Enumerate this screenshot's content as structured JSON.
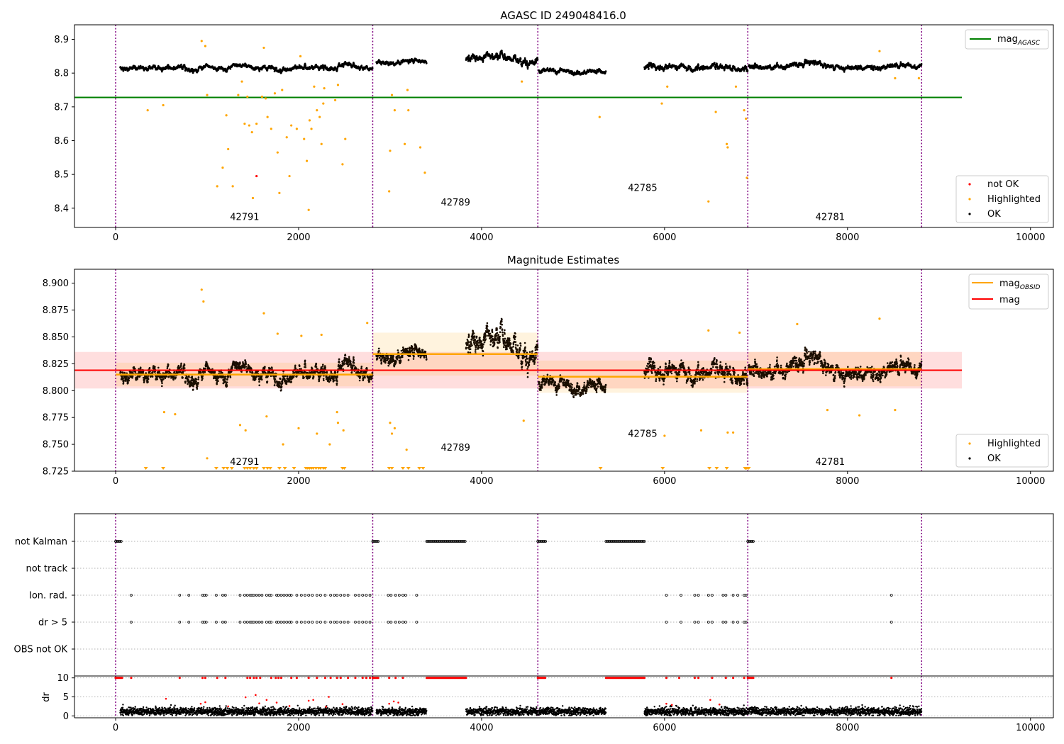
{
  "figure": {
    "background": "#ffffff"
  },
  "chart_data": [
    {
      "type": "scatter",
      "title": "AGASC ID 249048416.0",
      "xlim": [
        -450,
        10250
      ],
      "ylim": [
        8.343,
        8.943
      ],
      "x_ticks": [
        0,
        2000,
        4000,
        6000,
        8000,
        10000
      ],
      "x_tick_labels": [
        "0",
        "2000",
        "4000",
        "6000",
        "8000",
        "10000"
      ],
      "y_ticks": [
        8.4,
        8.5,
        8.6,
        8.7,
        8.8,
        8.9
      ],
      "y_tick_labels": [
        "8.4",
        "8.5",
        "8.6",
        "8.7",
        "8.8",
        "8.9"
      ],
      "obsid_boundaries": [
        0,
        2810,
        4615,
        6910,
        8810
      ],
      "obsid_labels": [
        {
          "text": "42791",
          "x": 1410,
          "y": 8.365
        },
        {
          "text": "42789",
          "x": 3715,
          "y": 8.408
        },
        {
          "text": "42785",
          "x": 5760,
          "y": 8.451
        },
        {
          "text": "42781",
          "x": 7810,
          "y": 8.365
        }
      ],
      "mag_agasc": 8.728,
      "mag_agasc_xrange": [
        -450,
        9250
      ],
      "segments": [
        {
          "x0": 50,
          "x1": 2810,
          "mean": 8.815,
          "std": 0.008
        },
        {
          "x0": 2850,
          "x1": 3400,
          "mean": 8.835,
          "std": 0.008
        },
        {
          "x0": 3830,
          "x1": 4615,
          "mean": 8.838,
          "std": 0.013
        },
        {
          "x0": 4625,
          "x1": 5360,
          "mean": 8.806,
          "std": 0.008
        },
        {
          "x0": 5780,
          "x1": 6910,
          "mean": 8.815,
          "std": 0.01
        },
        {
          "x0": 6920,
          "x1": 8810,
          "mean": 8.82,
          "std": 0.009
        }
      ],
      "highlighted_points": [
        [
          350,
          8.69
        ],
        [
          520,
          8.705
        ],
        [
          940,
          8.895
        ],
        [
          980,
          8.88
        ],
        [
          1000,
          8.735
        ],
        [
          1110,
          8.465
        ],
        [
          1170,
          8.52
        ],
        [
          1210,
          8.675
        ],
        [
          1230,
          8.575
        ],
        [
          1280,
          8.465
        ],
        [
          1340,
          8.735
        ],
        [
          1380,
          8.775
        ],
        [
          1410,
          8.65
        ],
        [
          1440,
          8.73
        ],
        [
          1460,
          8.645
        ],
        [
          1490,
          8.625
        ],
        [
          1500,
          8.43
        ],
        [
          1540,
          8.65
        ],
        [
          1600,
          8.73
        ],
        [
          1620,
          8.875
        ],
        [
          1640,
          8.725
        ],
        [
          1660,
          8.67
        ],
        [
          1700,
          8.635
        ],
        [
          1740,
          8.74
        ],
        [
          1770,
          8.565
        ],
        [
          1790,
          8.445
        ],
        [
          1820,
          8.75
        ],
        [
          1870,
          8.61
        ],
        [
          1900,
          8.495
        ],
        [
          1920,
          8.645
        ],
        [
          1980,
          8.635
        ],
        [
          2020,
          8.85
        ],
        [
          2060,
          8.605
        ],
        [
          2090,
          8.54
        ],
        [
          2110,
          8.395
        ],
        [
          2120,
          8.66
        ],
        [
          2140,
          8.635
        ],
        [
          2170,
          8.76
        ],
        [
          2200,
          8.69
        ],
        [
          2230,
          8.67
        ],
        [
          2250,
          8.59
        ],
        [
          2270,
          8.71
        ],
        [
          2280,
          8.755
        ],
        [
          2400,
          8.72
        ],
        [
          2430,
          8.765
        ],
        [
          2480,
          8.53
        ],
        [
          2510,
          8.605
        ],
        [
          2990,
          8.45
        ],
        [
          3000,
          8.57
        ],
        [
          3020,
          8.735
        ],
        [
          3050,
          8.69
        ],
        [
          3160,
          8.59
        ],
        [
          3190,
          8.75
        ],
        [
          3200,
          8.69
        ],
        [
          3330,
          8.58
        ],
        [
          3380,
          8.505
        ],
        [
          4440,
          8.775
        ],
        [
          5290,
          8.67
        ],
        [
          5970,
          8.71
        ],
        [
          6030,
          8.76
        ],
        [
          6480,
          8.42
        ],
        [
          6560,
          8.685
        ],
        [
          6680,
          8.59
        ],
        [
          6690,
          8.58
        ],
        [
          6780,
          8.76
        ],
        [
          6870,
          8.69
        ],
        [
          6890,
          8.665
        ],
        [
          6900,
          8.49
        ],
        [
          8350,
          8.865
        ],
        [
          8520,
          8.785
        ],
        [
          8780,
          8.785
        ]
      ],
      "not_ok_points": [
        [
          1540,
          8.495
        ]
      ]
    },
    {
      "type": "scatter",
      "title": "Magnitude Estimates",
      "xlim": [
        -450,
        10250
      ],
      "ylim": [
        8.725,
        8.913
      ],
      "x_ticks": [
        0,
        2000,
        4000,
        6000,
        8000,
        10000
      ],
      "x_tick_labels": [
        "0",
        "2000",
        "4000",
        "6000",
        "8000",
        "10000"
      ],
      "y_ticks": [
        8.725,
        8.75,
        8.775,
        8.8,
        8.825,
        8.85,
        8.875,
        8.9
      ],
      "y_tick_labels": [
        "8.725",
        "8.750",
        "8.775",
        "8.800",
        "8.825",
        "8.850",
        "8.875",
        "8.900"
      ],
      "obsid_labels": [
        {
          "text": "42791",
          "x": 1410,
          "y": 8.731
        },
        {
          "text": "42789",
          "x": 3715,
          "y": 8.744
        },
        {
          "text": "42785",
          "x": 5760,
          "y": 8.757
        },
        {
          "text": "42781",
          "x": 7810,
          "y": 8.731
        }
      ],
      "mag": 8.819,
      "mag_std": 0.017,
      "mag_xrange": [
        -450,
        9250
      ],
      "mag_obsid": [
        {
          "x0": 0,
          "x1": 2810,
          "mean": 8.815,
          "std": 0.011
        },
        {
          "x0": 2810,
          "x1": 4615,
          "mean": 8.834,
          "std": 0.02
        },
        {
          "x0": 4615,
          "x1": 6910,
          "mean": 8.813,
          "std": 0.015
        },
        {
          "x0": 6910,
          "x1": 8810,
          "mean": 8.82,
          "std": 0.016
        }
      ],
      "highlighted_points": [
        [
          530,
          8.78
        ],
        [
          650,
          8.778
        ],
        [
          940,
          8.894
        ],
        [
          960,
          8.883
        ],
        [
          1000,
          8.737
        ],
        [
          1360,
          8.768
        ],
        [
          1420,
          8.763
        ],
        [
          1620,
          8.872
        ],
        [
          1650,
          8.776
        ],
        [
          1770,
          8.853
        ],
        [
          1830,
          8.75
        ],
        [
          2000,
          8.765
        ],
        [
          2030,
          8.851
        ],
        [
          2200,
          8.76
        ],
        [
          2250,
          8.852
        ],
        [
          2340,
          8.75
        ],
        [
          2420,
          8.78
        ],
        [
          2430,
          8.77
        ],
        [
          2490,
          8.763
        ],
        [
          2750,
          8.863
        ],
        [
          3000,
          8.77
        ],
        [
          3020,
          8.76
        ],
        [
          3050,
          8.765
        ],
        [
          3180,
          8.745
        ],
        [
          4460,
          8.772
        ],
        [
          6000,
          8.758
        ],
        [
          6400,
          8.763
        ],
        [
          6480,
          8.856
        ],
        [
          6690,
          8.761
        ],
        [
          6750,
          8.761
        ],
        [
          6820,
          8.854
        ],
        [
          7450,
          8.862
        ],
        [
          7780,
          8.782
        ],
        [
          8130,
          8.777
        ],
        [
          8350,
          8.867
        ],
        [
          8520,
          8.782
        ]
      ],
      "clipped_points": [
        330,
        520,
        1100,
        1180,
        1220,
        1270,
        1410,
        1440,
        1470,
        1510,
        1540,
        1620,
        1660,
        1690,
        1790,
        1850,
        1950,
        2080,
        2100,
        2120,
        2140,
        2160,
        2190,
        2220,
        2240,
        2270,
        2290,
        2480,
        2500,
        2990,
        3020,
        3140,
        3200,
        3320,
        3360,
        5300,
        5980,
        6490,
        6570,
        6680,
        6880,
        6890,
        6900,
        6920
      ]
    },
    {
      "type": "scatter",
      "xlim": [
        -450,
        10250
      ],
      "y_tick_labels": [
        "not Kalman",
        "not track",
        "Ion. rad.",
        "dr > 5",
        "OBS not OK"
      ],
      "flag_ranges": {
        "not Kalman": [
          [
            0,
            70
          ],
          [
            2810,
            2870
          ],
          [
            3400,
            3830
          ],
          [
            4615,
            4700
          ],
          [
            5360,
            5780
          ],
          [
            6910,
            6970
          ]
        ]
      },
      "flag_points": {
        "Ion. rad.": [
          170,
          700,
          800,
          950,
          970,
          990,
          1100,
          1170,
          1200,
          1360,
          1410,
          1440,
          1470,
          1490,
          1510,
          1540,
          1570,
          1600,
          1650,
          1680,
          1700,
          1760,
          1780,
          1810,
          1840,
          1870,
          1900,
          1920,
          1980,
          2030,
          2070,
          2110,
          2150,
          2200,
          2240,
          2290,
          2350,
          2390,
          2420,
          2460,
          2500,
          2540,
          2620,
          2660,
          2700,
          2740,
          2780,
          2980,
          3010,
          3060,
          3100,
          3140,
          3170,
          3290,
          6020,
          6180,
          6330,
          6370,
          6480,
          6520,
          6640,
          6670,
          6750,
          6800,
          6870,
          6890,
          8480
        ],
        "dr > 5": [
          170,
          700,
          800,
          950,
          970,
          990,
          1100,
          1170,
          1200,
          1360,
          1410,
          1440,
          1470,
          1490,
          1510,
          1540,
          1570,
          1600,
          1650,
          1680,
          1700,
          1760,
          1780,
          1810,
          1840,
          1870,
          1900,
          1920,
          1980,
          2030,
          2070,
          2110,
          2150,
          2200,
          2240,
          2290,
          2350,
          2390,
          2420,
          2460,
          2500,
          2540,
          2620,
          2660,
          2700,
          2740,
          2780,
          2980,
          3010,
          3060,
          3100,
          3140,
          3170,
          3290,
          6020,
          6180,
          6330,
          6370,
          6480,
          6520,
          6640,
          6670,
          6750,
          6800,
          6870,
          6890,
          8480
        ]
      }
    },
    {
      "type": "scatter",
      "xlim": [
        -450,
        10250
      ],
      "ylim": [
        -0.5,
        10.5
      ],
      "ylabel": "dr",
      "x_ticks": [
        0,
        2000,
        4000,
        6000,
        8000,
        10000
      ],
      "x_tick_labels": [
        "0",
        "2000",
        "4000",
        "6000",
        "8000",
        "10000"
      ],
      "y_ticks": [
        0,
        5,
        10
      ],
      "y_tick_labels": [
        "0",
        "5",
        "10"
      ],
      "clipped_ranges": [
        [
          0,
          70
        ],
        [
          2810,
          2870
        ],
        [
          3400,
          3830
        ],
        [
          4615,
          4700
        ],
        [
          5360,
          5780
        ],
        [
          6910,
          6970
        ]
      ],
      "clipped_points": [
        170,
        700,
        950,
        980,
        1110,
        1200,
        1440,
        1470,
        1510,
        1540,
        1580,
        1700,
        1750,
        1780,
        1810,
        1920,
        1980,
        2110,
        2200,
        2290,
        2350,
        2420,
        2460,
        2540,
        2620,
        2700,
        2740,
        2780,
        2990,
        3060,
        3140,
        6020,
        6160,
        6330,
        6370,
        6520,
        6670,
        6750,
        6870,
        8480
      ],
      "scattered_red": [
        [
          550,
          4.5
        ],
        [
          930,
          3.2
        ],
        [
          980,
          3.6
        ],
        [
          1230,
          2.5
        ],
        [
          1420,
          4.9
        ],
        [
          1530,
          5.5
        ],
        [
          1570,
          3.3
        ],
        [
          1650,
          4.2
        ],
        [
          1760,
          3.5
        ],
        [
          1900,
          2.6
        ],
        [
          2110,
          4.0
        ],
        [
          2160,
          4.2
        ],
        [
          2300,
          2.4
        ],
        [
          2330,
          5.0
        ],
        [
          2480,
          3.1
        ],
        [
          2990,
          3.2
        ],
        [
          3040,
          3.8
        ],
        [
          3090,
          3.5
        ],
        [
          6020,
          3.2
        ],
        [
          6080,
          2.9
        ],
        [
          6500,
          4.2
        ],
        [
          6600,
          3.0
        ]
      ]
    }
  ],
  "legend1": {
    "top_entry": "mag",
    "top_entry_sub": "AGASC",
    "bottom_entries": [
      "not OK",
      "Highlighted",
      "OK"
    ]
  },
  "legend2": {
    "top_entries": [
      {
        "label": "mag",
        "sub": "OBSID"
      },
      {
        "label": "mag",
        "sub": ""
      }
    ],
    "bottom_entries": [
      "Highlighted",
      "OK"
    ]
  },
  "colors": {
    "ok": "#000000",
    "highlighted": "#ffa500",
    "not_ok": "#ff0000",
    "mag_agasc": "#008000",
    "mag_obsid": "#ffa500",
    "mag": "#ff0000",
    "obsid_boundary": "#800080",
    "flag_grid": "#b0b0b0"
  }
}
